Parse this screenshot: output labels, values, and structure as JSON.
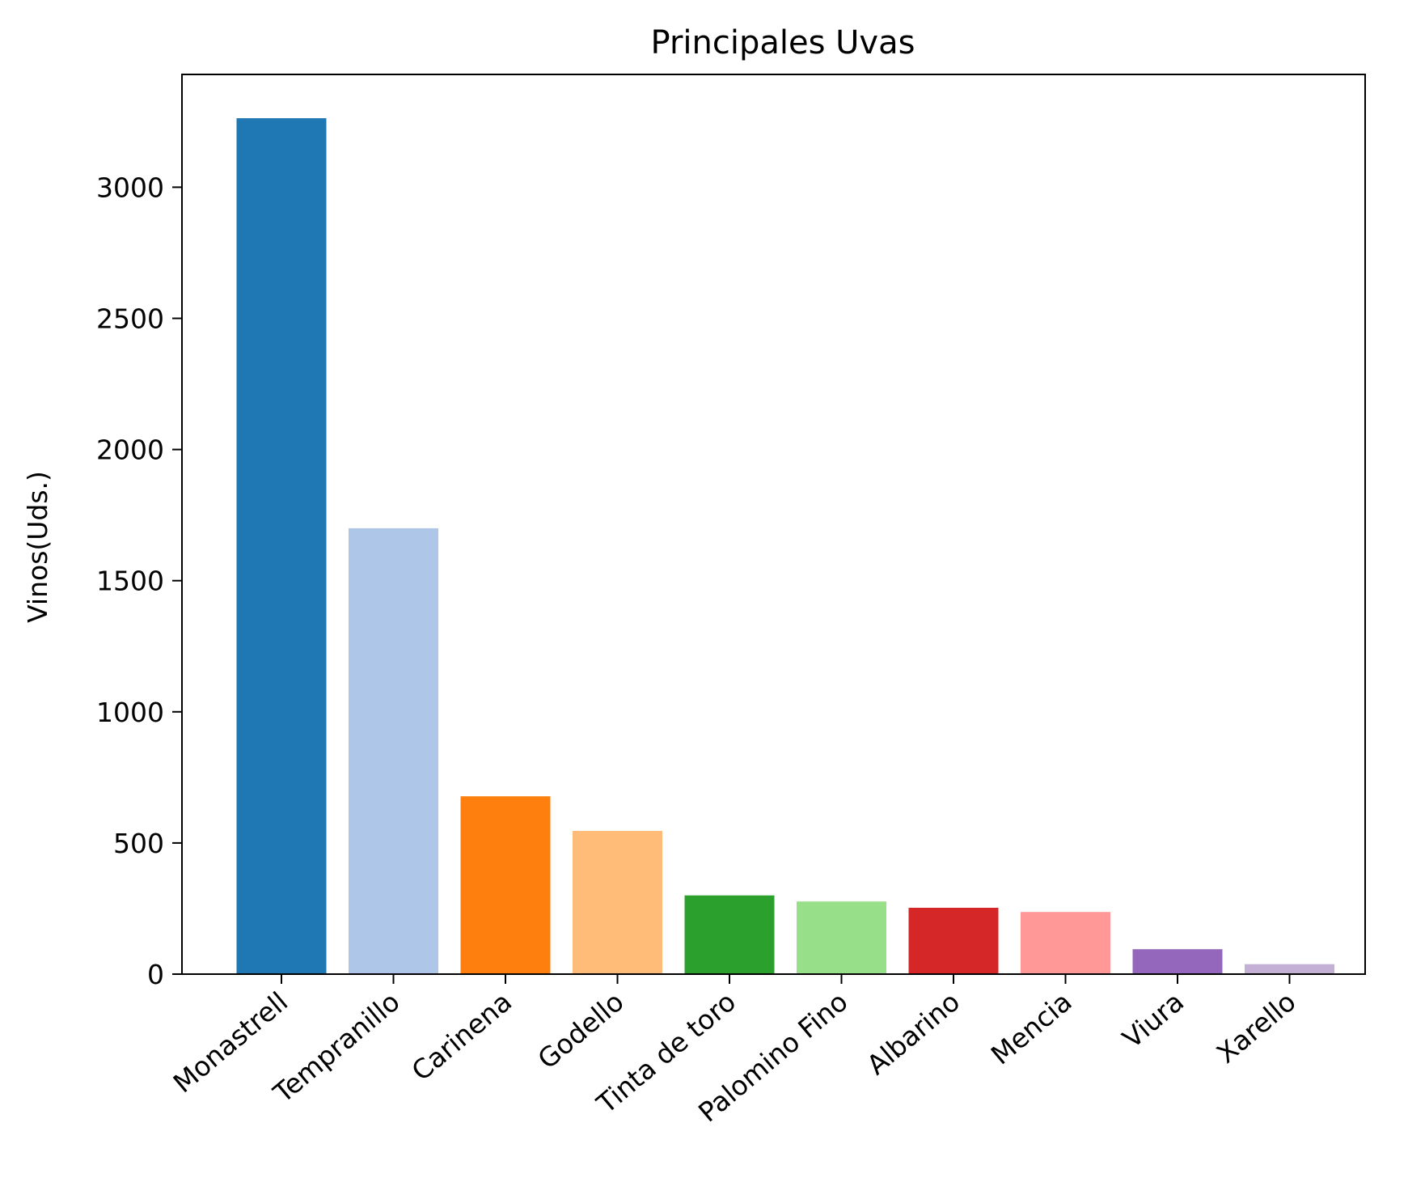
{
  "chart_data": {
    "type": "bar",
    "title": "Principales Uvas",
    "xlabel": "",
    "ylabel": "Vinos(Uds.)",
    "categories": [
      "Monastrell",
      "Tempranillo",
      "Carinena",
      "Godello",
      "Tinta de toro",
      "Palomino Fino",
      "Albarino",
      "Mencia",
      "Viura",
      "Xarello"
    ],
    "values": [
      3263,
      1700,
      678,
      546,
      300,
      277,
      253,
      237,
      95,
      38
    ],
    "colors": [
      "#1f77b4",
      "#aec7e8",
      "#ff7f0e",
      "#ffbb78",
      "#2ca02c",
      "#98df8a",
      "#d62728",
      "#ff9896",
      "#9467bd",
      "#c5b0d5"
    ],
    "ylim": [
      0,
      3430
    ],
    "yticks": [
      0,
      500,
      1000,
      1500,
      2000,
      2500,
      3000
    ],
    "xtick_rotation": -40,
    "grid": false,
    "legend": "none"
  }
}
